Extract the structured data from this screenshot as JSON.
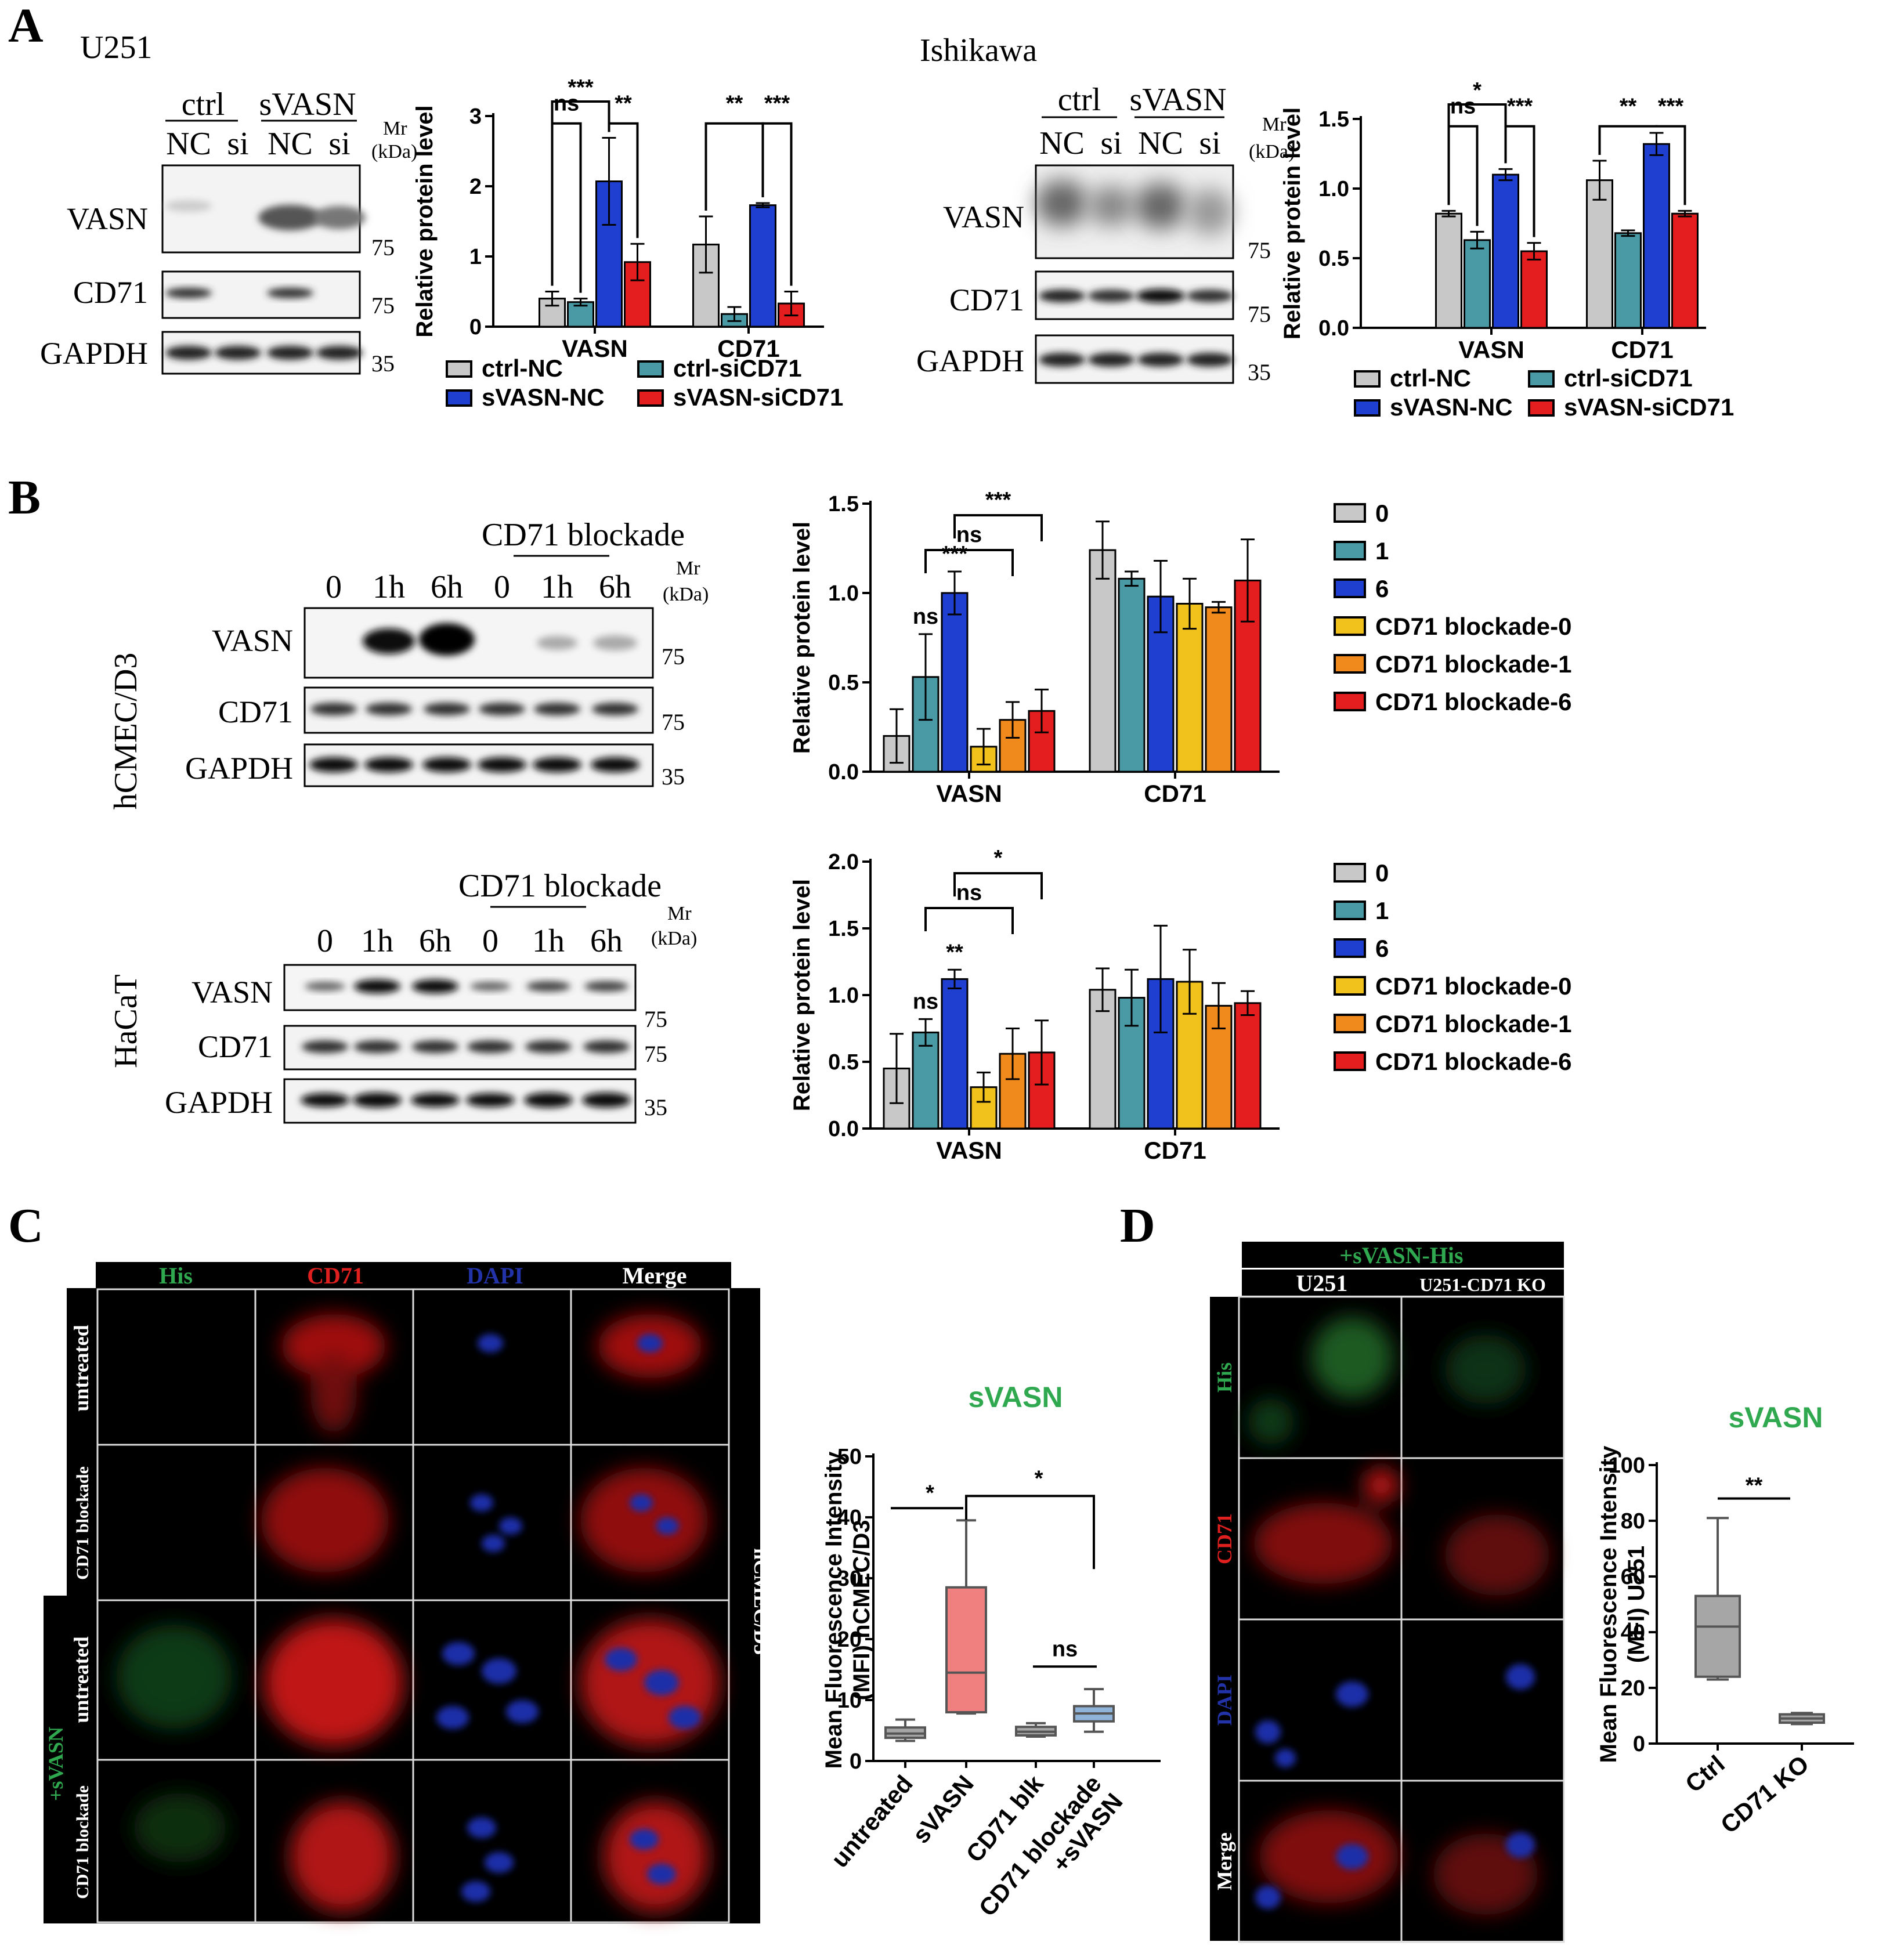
{
  "panels": {
    "A": {
      "label": "A",
      "blots": [
        {
          "cell_line": "U251",
          "group_labels": [
            "ctrl",
            "sVASN"
          ],
          "lanes": [
            "NC",
            "si",
            "NC",
            "si"
          ],
          "mr": "Mr",
          "kda": "(kDa)",
          "rows": [
            {
              "protein": "VASN",
              "mw": "75"
            },
            {
              "protein": "CD71",
              "mw": "75"
            },
            {
              "protein": "GAPDH",
              "mw": "35"
            }
          ]
        },
        {
          "cell_line": "Ishikawa",
          "group_labels": [
            "ctrl",
            "sVASN"
          ],
          "lanes": [
            "NC",
            "si",
            "NC",
            "si"
          ],
          "mr": "Mr",
          "kda": "(kDa)",
          "rows": [
            {
              "protein": "VASN",
              "mw": "75"
            },
            {
              "protein": "CD71",
              "mw": "75"
            },
            {
              "protein": "GAPDH",
              "mw": "35"
            }
          ]
        }
      ]
    },
    "B": {
      "label": "B",
      "blots": [
        {
          "cell_line": "hCMEC/D3",
          "treatment": "CD71 blockade",
          "lanes": [
            "0",
            "1h",
            "6h",
            "0",
            "1h",
            "6h"
          ],
          "mr": "Mr",
          "kda": "(kDa)",
          "rows": [
            {
              "protein": "VASN",
              "mw": "75"
            },
            {
              "protein": "CD71",
              "mw": "75"
            },
            {
              "protein": "GAPDH",
              "mw": "35"
            }
          ]
        },
        {
          "cell_line": "HaCaT",
          "treatment": "CD71 blockade",
          "lanes": [
            "0",
            "1h",
            "6h",
            "0",
            "1h",
            "6h"
          ],
          "mr": "Mr",
          "kda": "(kDa)",
          "rows": [
            {
              "protein": "VASN",
              "mw": "75"
            },
            {
              "protein": "CD71",
              "mw": "75"
            },
            {
              "protein": "GAPDH",
              "mw": "35"
            }
          ]
        }
      ]
    },
    "C": {
      "label": "C",
      "col_headers": [
        "His",
        "CD71",
        "DAPI",
        "Merge"
      ],
      "col_colors": [
        "#2fa84f",
        "#e0201e",
        "#2233aa",
        "#ffffff"
      ],
      "row_labels": [
        "untreated",
        "CD71 blockade",
        "untreated",
        "CD71 blockade"
      ],
      "group_label": "+sVASN",
      "side_label": "hCMEC/D3"
    },
    "D": {
      "label": "D",
      "treatment_header": "+sVASN-His",
      "col_headers": [
        "U251",
        "U251-CD71 KO"
      ],
      "row_labels": [
        "His",
        "CD71",
        "DAPI",
        "Merge"
      ],
      "row_colors": [
        "#2fa84f",
        "#e0201e",
        "#2233aa",
        "#ffffff"
      ]
    }
  },
  "chart_data": [
    {
      "id": "A-U251",
      "type": "bar",
      "categories": [
        "VASN",
        "CD71"
      ],
      "series": [
        {
          "name": "ctrl-NC",
          "color": "#c8c8c8",
          "values": [
            0.4,
            1.17
          ],
          "err": [
            0.1,
            0.4
          ]
        },
        {
          "name": "ctrl-siCD71",
          "color": "#4a9aa6",
          "values": [
            0.35,
            0.18
          ],
          "err": [
            0.05,
            0.1
          ]
        },
        {
          "name": "sVASN-NC",
          "color": "#1f3fd1",
          "values": [
            2.07,
            1.73
          ],
          "err": [
            0.62,
            0.03
          ]
        },
        {
          "name": "sVASN-siCD71",
          "color": "#e41e1e",
          "values": [
            0.92,
            0.33
          ],
          "err": [
            0.26,
            0.17
          ]
        }
      ],
      "ylabel": "Relative protein level",
      "ylim": [
        0,
        3
      ],
      "yticks": [
        "0",
        "1",
        "2",
        "3"
      ],
      "sig_labels": [
        "***",
        "ns",
        "**",
        "**",
        "***"
      ]
    },
    {
      "id": "A-Ishikawa",
      "type": "bar",
      "categories": [
        "VASN",
        "CD71"
      ],
      "series": [
        {
          "name": "ctrl-NC",
          "color": "#c8c8c8",
          "values": [
            0.82,
            1.06
          ],
          "err": [
            0.02,
            0.14
          ]
        },
        {
          "name": "ctrl-siCD71",
          "color": "#4a9aa6",
          "values": [
            0.63,
            0.68
          ],
          "err": [
            0.06,
            0.02
          ]
        },
        {
          "name": "sVASN-NC",
          "color": "#1f3fd1",
          "values": [
            1.1,
            1.32
          ],
          "err": [
            0.04,
            0.08
          ]
        },
        {
          "name": "sVASN-siCD71",
          "color": "#e41e1e",
          "values": [
            0.55,
            0.82
          ],
          "err": [
            0.06,
            0.02
          ]
        }
      ],
      "ylabel": "Relative protein level",
      "ylim": [
        0,
        1.5
      ],
      "yticks": [
        "0.0",
        "0.5",
        "1.0",
        "1.5"
      ],
      "sig_labels": [
        "*",
        "ns",
        "***",
        "**",
        "***"
      ]
    },
    {
      "id": "B-hCMEC",
      "type": "bar",
      "categories": [
        "VASN",
        "CD71"
      ],
      "series": [
        {
          "name": "0",
          "color": "#c8c8c8",
          "values": [
            0.2,
            1.24
          ],
          "err": [
            0.15,
            0.16
          ]
        },
        {
          "name": "1",
          "color": "#4a9aa6",
          "values": [
            0.53,
            1.08
          ],
          "err": [
            0.24,
            0.04
          ]
        },
        {
          "name": "6",
          "color": "#1f3fd1",
          "values": [
            1.0,
            0.98
          ],
          "err": [
            0.12,
            0.2
          ]
        },
        {
          "name": "CD71 blockade-0",
          "color": "#f2c21c",
          "values": [
            0.14,
            0.94
          ],
          "err": [
            0.1,
            0.14
          ]
        },
        {
          "name": "CD71 blockade-1",
          "color": "#f08a1c",
          "values": [
            0.29,
            0.92
          ],
          "err": [
            0.1,
            0.03
          ]
        },
        {
          "name": "CD71 blockade-6",
          "color": "#e41e1e",
          "values": [
            0.34,
            1.07
          ],
          "err": [
            0.12,
            0.23
          ]
        }
      ],
      "ylabel": "Relative protein level",
      "ylim": [
        0,
        1.5
      ],
      "yticks": [
        "0.0",
        "0.5",
        "1.0",
        "1.5"
      ],
      "sig_labels": [
        "***",
        "ns",
        "***",
        "ns"
      ]
    },
    {
      "id": "B-HaCaT",
      "type": "bar",
      "categories": [
        "VASN",
        "CD71"
      ],
      "series": [
        {
          "name": "0",
          "color": "#c8c8c8",
          "values": [
            0.45,
            1.04
          ],
          "err": [
            0.26,
            0.16
          ]
        },
        {
          "name": "1",
          "color": "#4a9aa6",
          "values": [
            0.72,
            0.98
          ],
          "err": [
            0.1,
            0.21
          ]
        },
        {
          "name": "6",
          "color": "#1f3fd1",
          "values": [
            1.12,
            1.12
          ],
          "err": [
            0.07,
            0.4
          ]
        },
        {
          "name": "CD71 blockade-0",
          "color": "#f2c21c",
          "values": [
            0.31,
            1.1
          ],
          "err": [
            0.11,
            0.24
          ]
        },
        {
          "name": "CD71 blockade-1",
          "color": "#f08a1c",
          "values": [
            0.56,
            0.92
          ],
          "err": [
            0.19,
            0.17
          ]
        },
        {
          "name": "CD71 blockade-6",
          "color": "#e41e1e",
          "values": [
            0.57,
            0.94
          ],
          "err": [
            0.24,
            0.09
          ]
        }
      ],
      "ylabel": "Relative protein level",
      "ylim": [
        0,
        2
      ],
      "yticks": [
        "0.0",
        "0.5",
        "1.0",
        "1.5",
        "2.0"
      ],
      "sig_labels": [
        "*",
        "ns",
        "**",
        "ns"
      ]
    },
    {
      "id": "C-MFI",
      "type": "box",
      "title": "sVASN",
      "title_color": "#2fa84f",
      "categories": [
        "untreated",
        "sVASN",
        "CD71 blk",
        "CD71 blockade +sVASN"
      ],
      "boxes": [
        {
          "min": 3.3,
          "q1": 3.8,
          "median": 4.5,
          "q3": 5.5,
          "max": 6.8,
          "color": "#a6a6a6"
        },
        {
          "min": 7.8,
          "q1": 8,
          "median": 14.5,
          "q3": 28.5,
          "max": 39.5,
          "color": "#f08080"
        },
        {
          "min": 4,
          "q1": 4.2,
          "median": 4.8,
          "q3": 5.6,
          "max": 6.2,
          "color": "#a6a6a6"
        },
        {
          "min": 4.8,
          "q1": 6.5,
          "median": 7.8,
          "q3": 9,
          "max": 11.8,
          "color": "#8fb3d9"
        }
      ],
      "ylabel": "Mean Fluorescence Intensity (MFI) hCMEC/D3",
      "ylim": [
        0,
        50
      ],
      "yticks": [
        "0",
        "10",
        "20",
        "30",
        "40",
        "50"
      ],
      "sig_labels": [
        "*",
        "*",
        "ns"
      ]
    },
    {
      "id": "D-MFI",
      "type": "box",
      "title": "sVASN",
      "title_color": "#2fa84f",
      "categories": [
        "Ctrl",
        "CD71 KO"
      ],
      "boxes": [
        {
          "min": 23,
          "q1": 24,
          "median": 42,
          "q3": 53,
          "max": 81,
          "color": "#a6a6a6"
        },
        {
          "min": 7,
          "q1": 7.5,
          "median": 9,
          "q3": 10.5,
          "max": 11,
          "color": "#a6a6a6"
        }
      ],
      "ylabel": "Mean Fluorescence Intensity (MFI) U251",
      "ylim": [
        0,
        100
      ],
      "yticks": [
        "0",
        "20",
        "40",
        "60",
        "80",
        "100"
      ],
      "sig_labels": [
        "**"
      ]
    }
  ]
}
